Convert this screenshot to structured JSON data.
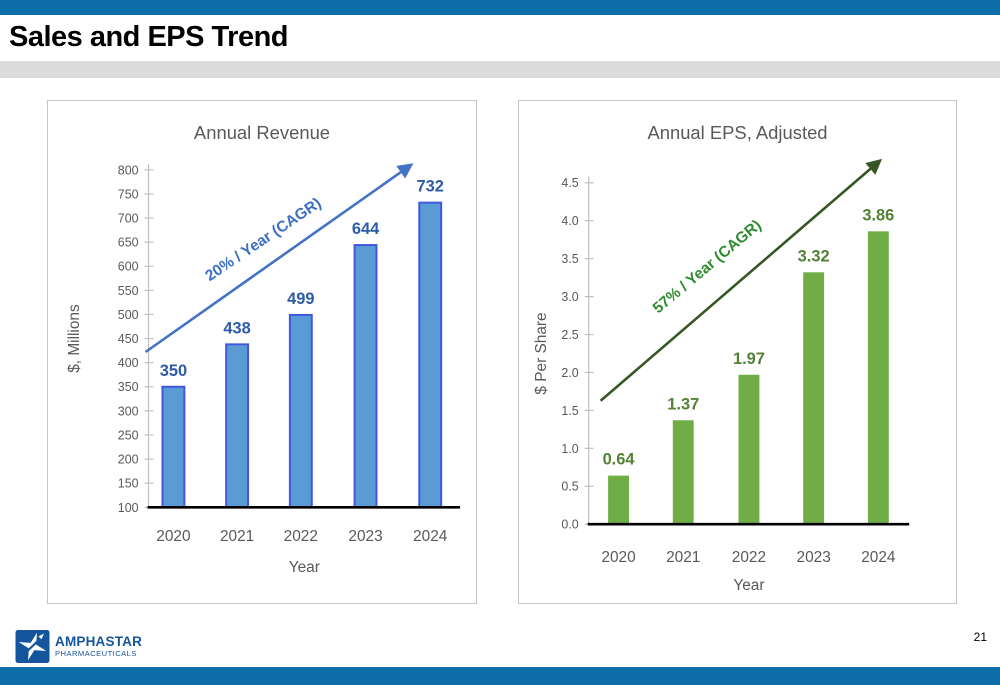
{
  "slide": {
    "title": "Sales and EPS Trend",
    "page_number": "21",
    "logo": {
      "line1": "AMPHASTAR",
      "line2": "PHARMACEUTICALS"
    },
    "colors": {
      "accent_bar": "#0D6EA9",
      "title_band": "#DBDBDB",
      "panel_border": "#C6C6C6",
      "axis_line": "#BFBFBF",
      "axis_text": "#595959",
      "chart_title_text": "#595959",
      "baseline": "#000000",
      "logo_blue": "#15559E"
    }
  },
  "chart_data": [
    {
      "type": "bar",
      "title": "Annual Revenue",
      "categories": [
        "2020",
        "2021",
        "2022",
        "2023",
        "2024"
      ],
      "values": [
        350,
        438,
        499,
        644,
        732
      ],
      "value_labels": [
        "350",
        "438",
        "499",
        "644",
        "732"
      ],
      "xlabel": "Year",
      "ylabel": "$, Millions",
      "ylim": [
        100,
        800
      ],
      "ytick_step": 50,
      "ytick_decimals": 0,
      "grid": false,
      "annotation": "20% / Year  (CAGR)",
      "bar_fill": "#5B9BD5",
      "bar_stroke": "#4157DE",
      "label_color": "#2E5CA6",
      "arrow_color": "#4472C4",
      "annotation_color": "#3A6FC4"
    },
    {
      "type": "bar",
      "title": "Annual EPS, Adjusted",
      "categories": [
        "2020",
        "2021",
        "2022",
        "2023",
        "2024"
      ],
      "values": [
        0.64,
        1.37,
        1.97,
        3.32,
        3.86
      ],
      "value_labels": [
        "0.64",
        "1.37",
        "1.97",
        "3.32",
        "3.86"
      ],
      "xlabel": "Year",
      "ylabel": "$ Per Share",
      "ylim": [
        0,
        4.5
      ],
      "ytick_step": 0.5,
      "ytick_decimals": 1,
      "grid": false,
      "annotation": "57% / Year  (CAGR)",
      "bar_fill": "#70AD47",
      "bar_stroke": "none",
      "label_color": "#538135",
      "arrow_color": "#375623",
      "annotation_color": "#2E8B2E"
    }
  ]
}
